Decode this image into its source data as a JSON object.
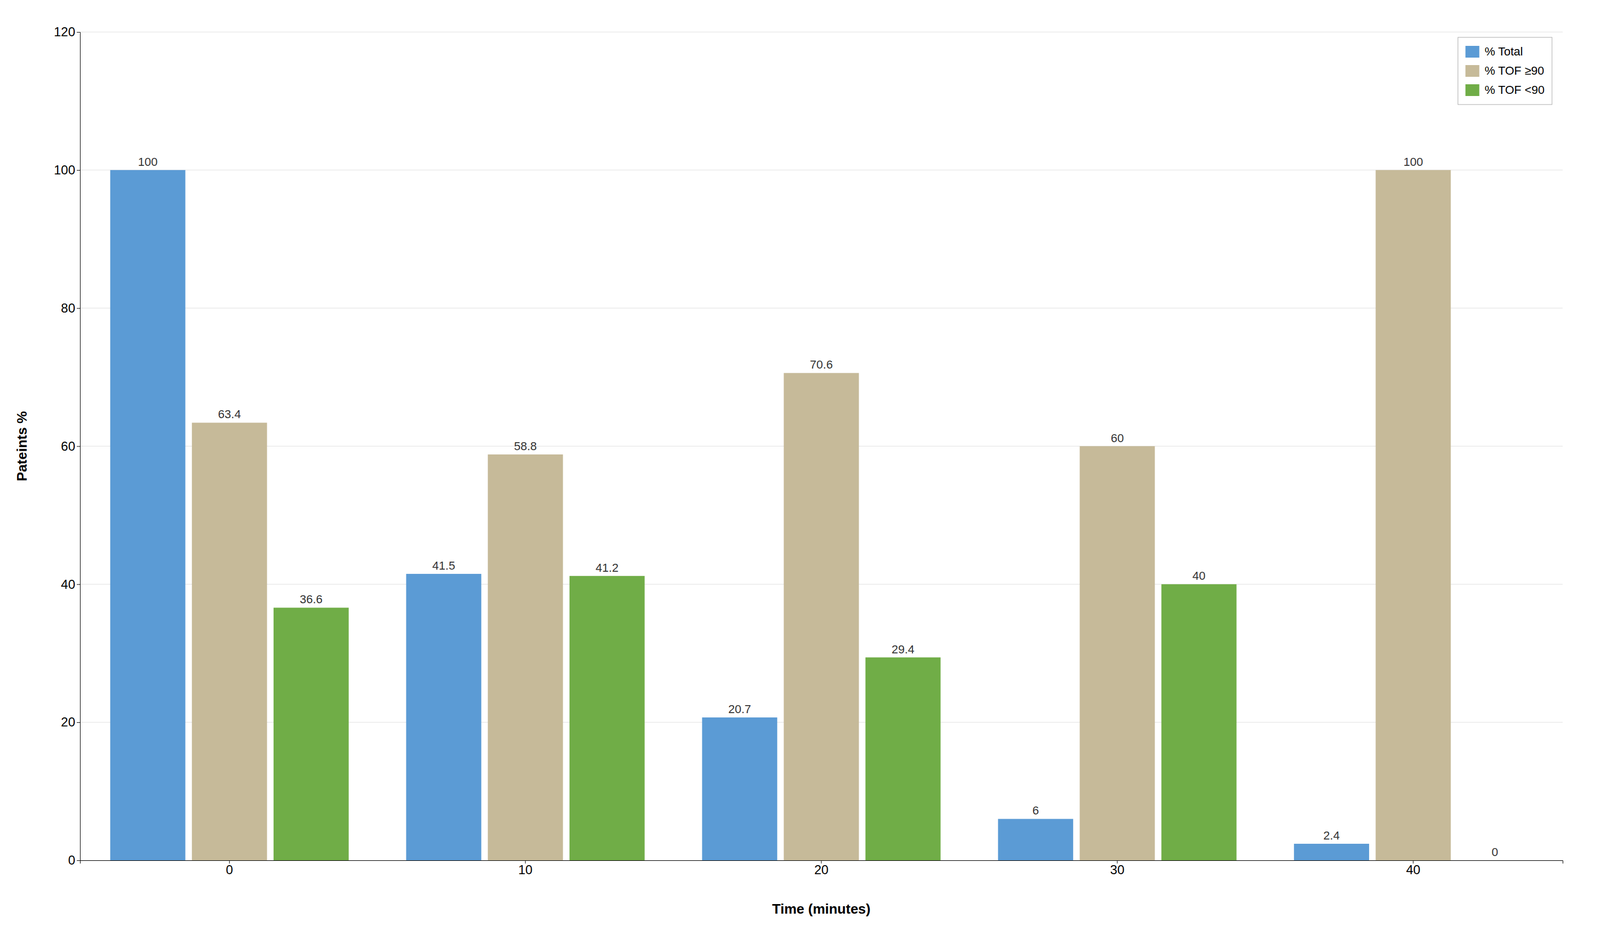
{
  "chart_data": {
    "type": "bar",
    "categories": [
      "0",
      "10",
      "20",
      "30",
      "40"
    ],
    "series": [
      {
        "name": "% Total",
        "color": "#5B9BD5",
        "values": [
          100,
          41.5,
          20.7,
          6,
          2.4
        ]
      },
      {
        "name": "% TOF ≥90",
        "color": "#C6BA99",
        "values": [
          63.4,
          58.8,
          70.6,
          60,
          100
        ]
      },
      {
        "name": "% TOF <90",
        "color": "#70AD47",
        "values": [
          36.6,
          41.2,
          29.4,
          40,
          0
        ]
      }
    ],
    "xlabel": "Time (minutes)",
    "ylabel": "Pateints %",
    "ylim": [
      0,
      120
    ],
    "yticks": [
      0,
      20,
      40,
      60,
      80,
      100,
      120
    ],
    "grid": true,
    "legend": "upper right",
    "data_labels": true
  }
}
